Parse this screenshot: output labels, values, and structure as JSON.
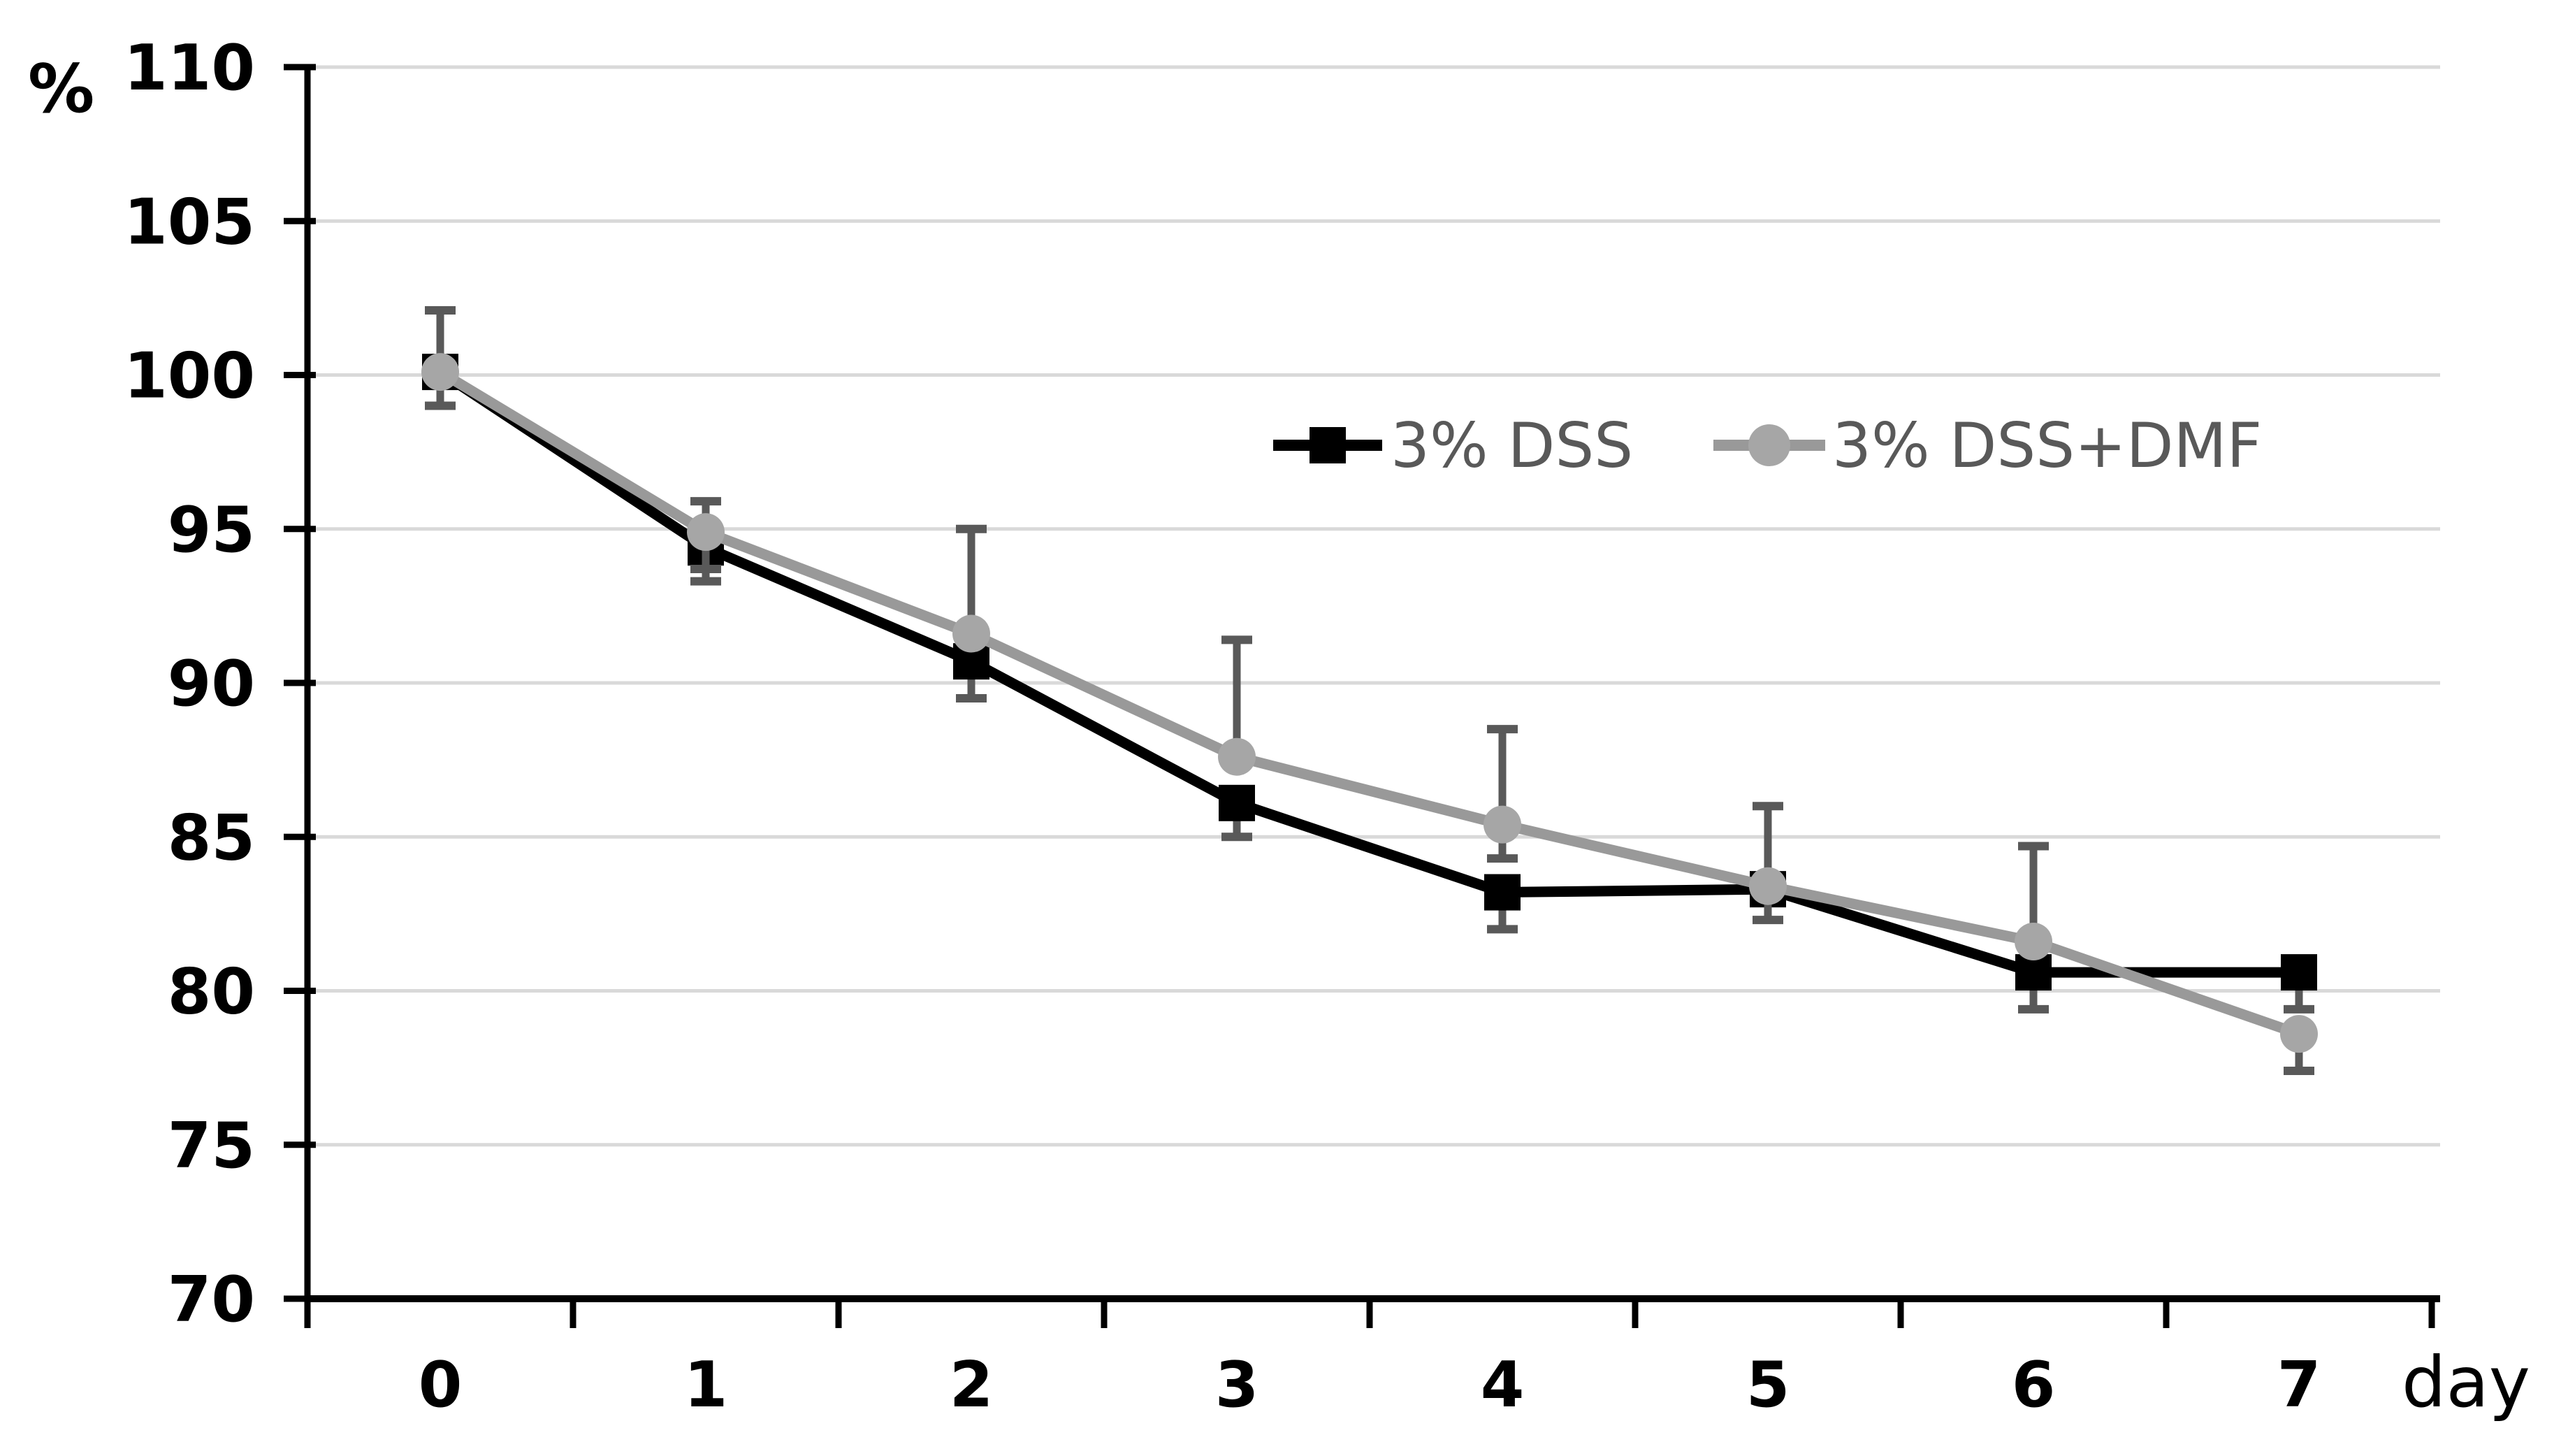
{
  "chart_data": {
    "type": "line",
    "title": "",
    "ylabel": "%",
    "xlabel": "day",
    "x": [
      0,
      1,
      2,
      3,
      4,
      5,
      6,
      7
    ],
    "x_tick_labels": [
      "0",
      "1",
      "2",
      "3",
      "4",
      "5",
      "6",
      "7"
    ],
    "ylim": [
      70,
      110
    ],
    "yticks": [
      70,
      75,
      80,
      85,
      90,
      95,
      100,
      105,
      110
    ],
    "grid": true,
    "gridline_color": "#d9d9d9",
    "axis_color": "#000000",
    "error_bar_color": "#595959",
    "legend_position": "inside-upper-right",
    "series": [
      {
        "name": "3% DSS",
        "marker": "square",
        "line_color": "#000000",
        "marker_color": "#000000",
        "values": [
          100.1,
          94.4,
          90.7,
          86.1,
          83.2,
          83.3,
          80.6,
          80.6
        ],
        "err_up": [
          2.0,
          0,
          0,
          0,
          0,
          0,
          0,
          0
        ],
        "err_down": [
          1.1,
          1.1,
          1.2,
          1.1,
          1.2,
          0,
          1.2,
          1.2
        ]
      },
      {
        "name": "3% DSS+DMF",
        "marker": "circle",
        "line_color": "#999999",
        "marker_color": "#a6a6a6",
        "values": [
          100.1,
          94.9,
          91.6,
          87.6,
          85.4,
          83.4,
          81.6,
          78.6
        ],
        "err_up": [
          2.0,
          1.0,
          3.4,
          3.8,
          3.1,
          2.6,
          3.1,
          0
        ],
        "err_down": [
          1.1,
          1.2,
          0,
          0,
          1.1,
          1.1,
          0,
          1.2
        ]
      }
    ]
  }
}
